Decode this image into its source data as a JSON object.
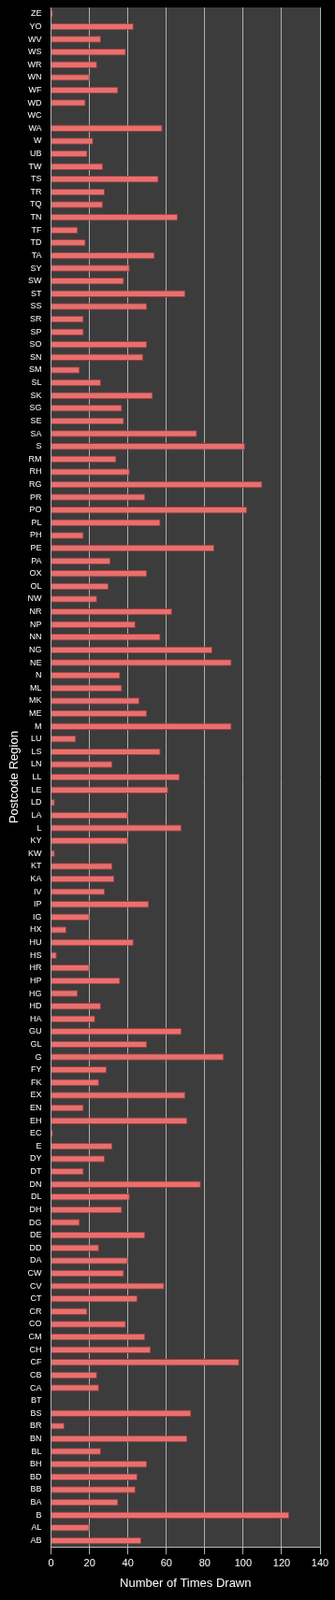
{
  "chart_data": {
    "type": "bar",
    "orientation": "horizontal",
    "x_label": "Number of Times Drawn",
    "y_label": "Postcode Region",
    "categories": [
      "ZE",
      "YO",
      "WV",
      "WS",
      "WR",
      "WN",
      "WF",
      "WD",
      "WC",
      "WA",
      "W",
      "UB",
      "TW",
      "TS",
      "TR",
      "TQ",
      "TN",
      "TF",
      "TD",
      "TA",
      "SY",
      "SW",
      "ST",
      "SS",
      "SR",
      "SP",
      "SO",
      "SN",
      "SM",
      "SL",
      "SK",
      "SG",
      "SE",
      "SA",
      "S",
      "RM",
      "RH",
      "RG",
      "PR",
      "PO",
      "PL",
      "PH",
      "PE",
      "PA",
      "OX",
      "OL",
      "NW",
      "NR",
      "NP",
      "NN",
      "NG",
      "NE",
      "N",
      "ML",
      "MK",
      "ME",
      "M",
      "LU",
      "LS",
      "LN",
      "LL",
      "LE",
      "LD",
      "LA",
      "L",
      "KY",
      "KW",
      "KT",
      "KA",
      "IV",
      "IP",
      "IG",
      "HX",
      "HU",
      "HS",
      "HR",
      "HP",
      "HG",
      "HD",
      "HA",
      "GU",
      "GL",
      "G",
      "FY",
      "FK",
      "EX",
      "EN",
      "EH",
      "EC",
      "E",
      "DY",
      "DT",
      "DN",
      "DL",
      "DH",
      "DG",
      "DE",
      "DD",
      "DA",
      "CW",
      "CV",
      "CT",
      "CR",
      "CO",
      "CM",
      "CH",
      "CF",
      "CB",
      "CA",
      "BT",
      "BS",
      "BR",
      "BN",
      "BL",
      "BH",
      "BD",
      "BB",
      "BA",
      "B",
      "AL",
      "AB"
    ],
    "values": [
      1,
      43,
      26,
      39,
      24,
      20,
      35,
      18,
      0,
      58,
      22,
      19,
      27,
      56,
      28,
      27,
      66,
      14,
      18,
      54,
      41,
      38,
      70,
      50,
      17,
      17,
      50,
      48,
      15,
      26,
      53,
      37,
      38,
      76,
      101,
      34,
      41,
      110,
      49,
      102,
      57,
      17,
      85,
      31,
      50,
      30,
      24,
      63,
      44,
      57,
      84,
      94,
      36,
      37,
      46,
      50,
      94,
      13,
      57,
      32,
      67,
      61,
      2,
      40,
      68,
      40,
      2,
      32,
      33,
      28,
      51,
      20,
      8,
      43,
      3,
      20,
      36,
      14,
      26,
      23,
      68,
      50,
      90,
      29,
      25,
      70,
      17,
      71,
      1,
      32,
      28,
      17,
      78,
      41,
      37,
      15,
      49,
      25,
      40,
      38,
      59,
      45,
      19,
      39,
      49,
      52,
      98,
      24,
      25,
      0,
      73,
      7,
      71,
      26,
      50,
      45,
      44,
      35,
      124,
      20,
      47
    ],
    "color": "#e8706f",
    "xlim": [
      0,
      140
    ],
    "xticks": [
      0,
      20,
      40,
      60,
      80,
      100,
      120,
      140
    ],
    "grid": true
  }
}
